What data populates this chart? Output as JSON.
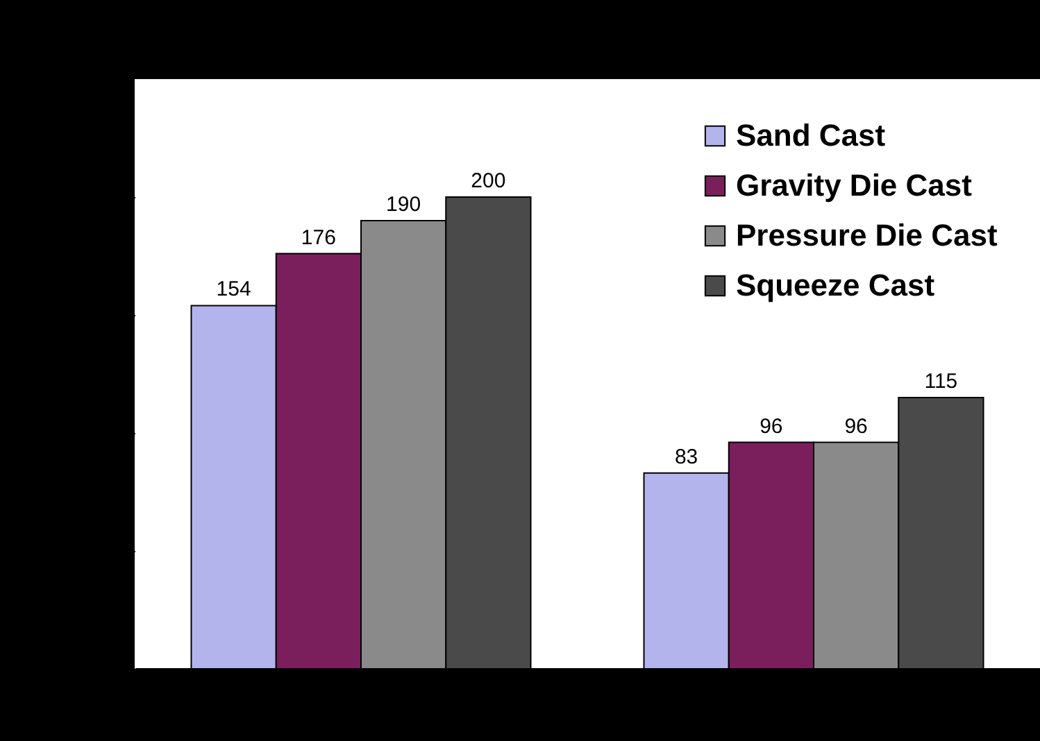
{
  "chart_data": {
    "type": "bar",
    "categories": [
      null,
      null
    ],
    "series": [
      {
        "name": "Sand Cast",
        "color": "#b4b4ec",
        "values": [
          154,
          83
        ]
      },
      {
        "name": "Gravity Die Cast",
        "color": "#7a1f5c",
        "values": [
          176,
          96
        ]
      },
      {
        "name": "Pressure Die Cast",
        "color": "#8a8a8a",
        "values": [
          190,
          96
        ]
      },
      {
        "name": "Squeeze Cast",
        "color": "#4a4a4a",
        "values": [
          200,
          115
        ]
      }
    ],
    "ylim": [
      0,
      250
    ],
    "yticks": [
      {
        "value": 0,
        "label": null
      },
      {
        "value": 50,
        "label": null
      },
      {
        "value": 100,
        "label": null
      },
      {
        "value": 150,
        "label": null
      },
      {
        "value": 200,
        "label": null
      }
    ],
    "data_labels": true,
    "legend": "top right",
    "grid": false
  }
}
